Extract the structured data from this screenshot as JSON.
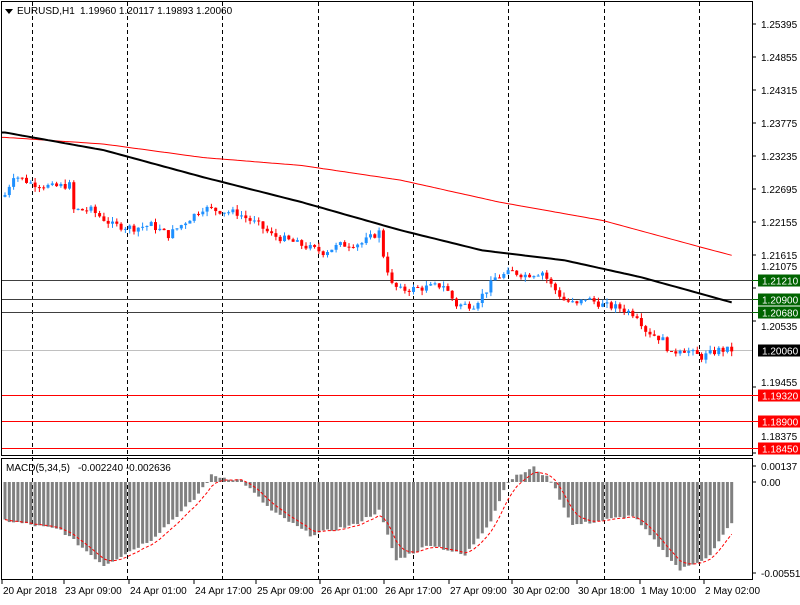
{
  "header": {
    "symbol": "EURUSD,H1",
    "ohlc": "1.19960 1.20117 1.19893 1.20060"
  },
  "macd_header": {
    "title": "MACD(5,34,5)",
    "values": "-0.002240 -0.002636"
  },
  "colors": {
    "bull": "#1e90ff",
    "bear": "#ff0000",
    "ma_slow": "#ff0000",
    "ma_fast": "#000000",
    "level_green": "#006400",
    "level_red": "#ff0000",
    "hist": "#808080",
    "signal": "#ff0000"
  },
  "chart_data": [
    {
      "type": "candlestick",
      "title": "EURUSD,H1",
      "bars": 170,
      "ylim": [
        1.18375,
        1.25395
      ],
      "y_ticks": [
        "1.25395",
        "1.24855",
        "1.24315",
        "1.23775",
        "1.23235",
        "1.22695",
        "1.22155",
        "1.21615",
        "1.21075",
        "1.20535",
        "1.19455",
        "1.18375"
      ],
      "x_ticks": [
        "20 Apr 2018",
        "23 Apr 09:00",
        "24 Apr 01:00",
        "24 Apr 17:00",
        "25 Apr 09:00",
        "26 Apr 01:00",
        "26 Apr 17:00",
        "27 Apr 09:00",
        "30 Apr 02:00",
        "30 Apr 18:00",
        "1 May 10:00",
        "2 May 02:00"
      ],
      "close_keypoints": [
        [
          0,
          1.22597
        ],
        [
          2,
          1.22924
        ],
        [
          6,
          1.22793
        ],
        [
          11,
          1.22728
        ],
        [
          15,
          1.2276
        ],
        [
          16,
          1.22351
        ],
        [
          20,
          1.22351
        ],
        [
          25,
          1.22106
        ],
        [
          30,
          1.22057
        ],
        [
          34,
          1.22106
        ],
        [
          38,
          1.21942
        ],
        [
          41,
          1.22106
        ],
        [
          46,
          1.22384
        ],
        [
          49,
          1.22351
        ],
        [
          54,
          1.22302
        ],
        [
          59,
          1.22106
        ],
        [
          62,
          1.21942
        ],
        [
          67,
          1.21828
        ],
        [
          71,
          1.21729
        ],
        [
          74,
          1.21664
        ],
        [
          78,
          1.21778
        ],
        [
          83,
          1.21811
        ],
        [
          87,
          1.21991
        ],
        [
          88,
          1.21615
        ],
        [
          90,
          1.21124
        ],
        [
          92,
          1.21042
        ],
        [
          97,
          1.21075
        ],
        [
          102,
          1.21124
        ],
        [
          105,
          1.20797
        ],
        [
          109,
          1.20797
        ],
        [
          112,
          1.21042
        ],
        [
          114,
          1.21239
        ],
        [
          118,
          1.21337
        ],
        [
          121,
          1.21288
        ],
        [
          125,
          1.21337
        ],
        [
          127,
          1.21124
        ],
        [
          130,
          1.20879
        ],
        [
          133,
          1.20797
        ],
        [
          135,
          1.20911
        ],
        [
          139,
          1.20797
        ],
        [
          143,
          1.20748
        ],
        [
          147,
          1.20633
        ],
        [
          149,
          1.20388
        ],
        [
          153,
          1.20224
        ],
        [
          155,
          1.19979
        ],
        [
          157,
          1.20093
        ],
        [
          162,
          1.19946
        ],
        [
          166,
          1.2006
        ],
        [
          169,
          1.2006
        ]
      ],
      "ma_fast_keypoints": [
        [
          0,
          1.2362
        ],
        [
          23,
          1.2333
        ],
        [
          46,
          1.2289
        ],
        [
          69,
          1.2248
        ],
        [
          92,
          1.2202
        ],
        [
          111,
          1.2169
        ],
        [
          130,
          1.2153
        ],
        [
          148,
          1.2125
        ],
        [
          169,
          1.2084
        ]
      ],
      "ma_slow_keypoints": [
        [
          0,
          1.2354
        ],
        [
          23,
          1.2343
        ],
        [
          46,
          1.2321
        ],
        [
          69,
          1.2308
        ],
        [
          92,
          1.2284
        ],
        [
          115,
          1.2248
        ],
        [
          139,
          1.2218
        ],
        [
          162,
          1.2174
        ],
        [
          169,
          1.2161
        ]
      ],
      "current_price": "1.20060",
      "levels": [
        {
          "value": "1.21210",
          "kind": "green"
        },
        {
          "value": "1.20900",
          "kind": "green"
        },
        {
          "value": "1.20680",
          "kind": "green"
        },
        {
          "value": "1.19320",
          "kind": "red"
        },
        {
          "value": "1.18900",
          "kind": "red"
        },
        {
          "value": "1.18450",
          "kind": "red"
        }
      ]
    },
    {
      "type": "bar",
      "title": "MACD(5,34,5)",
      "ylim": [
        -0.0062,
        0.0015
      ],
      "y_ticks": [
        "0.00137",
        "0.00",
        "-0.005517"
      ],
      "hist_keypoints": [
        [
          0,
          -0.0024
        ],
        [
          13,
          -0.003
        ],
        [
          23,
          -0.0052
        ],
        [
          34,
          -0.0036
        ],
        [
          44,
          -0.0011
        ],
        [
          48,
          0.0004
        ],
        [
          55,
          0.0001
        ],
        [
          62,
          -0.0018
        ],
        [
          71,
          -0.0033
        ],
        [
          81,
          -0.0027
        ],
        [
          87,
          -0.0018
        ],
        [
          91,
          -0.0049
        ],
        [
          99,
          -0.0039
        ],
        [
          107,
          -0.0046
        ],
        [
          113,
          -0.0024
        ],
        [
          117,
          0.0001
        ],
        [
          123,
          0.0009
        ],
        [
          127,
          0.0001
        ],
        [
          132,
          -0.0027
        ],
        [
          139,
          -0.0024
        ],
        [
          146,
          -0.0021
        ],
        [
          153,
          -0.0043
        ],
        [
          157,
          -0.0055
        ],
        [
          164,
          -0.0046
        ],
        [
          169,
          -0.0025
        ]
      ]
    }
  ]
}
